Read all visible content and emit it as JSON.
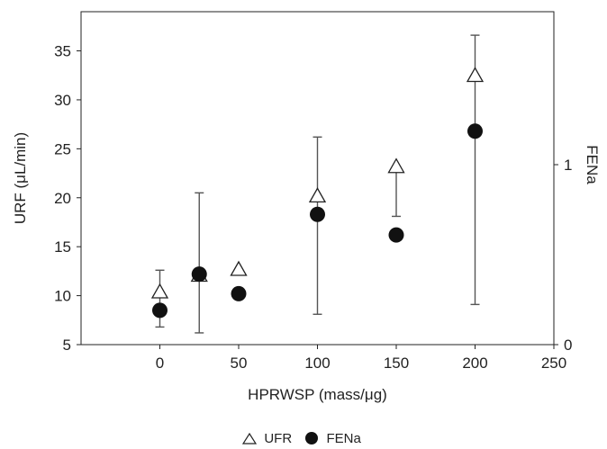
{
  "chart_data": {
    "type": "scatter",
    "title": "",
    "xlabel": "HPRWSP (mass/μg)",
    "ylabel": "URF (μL/min)",
    "y2label": "FENa",
    "xlim": [
      -50,
      250
    ],
    "ylim": [
      5,
      39
    ],
    "y2lim": [
      0,
      1.85
    ],
    "xticks": [
      "0",
      "50",
      "100",
      "150",
      "200",
      "250"
    ],
    "yticks": [
      "5",
      "10",
      "15",
      "20",
      "25",
      "30",
      "35"
    ],
    "y2ticks": [
      "0",
      "1"
    ],
    "grid": false,
    "legend_position": "bottom-center",
    "series": [
      {
        "name": "UFR",
        "marker": "open-triangle",
        "axis": "left",
        "points": [
          {
            "x": 0,
            "y": 10.3,
            "err_low": 6.8,
            "err_high": 12.6
          },
          {
            "x": 25,
            "y": 12.0,
            "err_low": 6.2,
            "err_high": 20.5
          },
          {
            "x": 50,
            "y": 12.6,
            "err_low": null,
            "err_high": null
          },
          {
            "x": 100,
            "y": 20.1,
            "err_low": 8.1,
            "err_high": 26.2
          },
          {
            "x": 150,
            "y": 23.1,
            "err_low": 18.1,
            "err_high": 23.1
          },
          {
            "x": 200,
            "y": 32.4,
            "err_low": 9.1,
            "err_high": 36.6
          }
        ]
      },
      {
        "name": "FENa",
        "marker": "filled-circle",
        "axis": "left",
        "points": [
          {
            "x": 0,
            "y": 8.5
          },
          {
            "x": 25,
            "y": 12.2
          },
          {
            "x": 50,
            "y": 10.2
          },
          {
            "x": 100,
            "y": 18.3
          },
          {
            "x": 150,
            "y": 16.2
          },
          {
            "x": 200,
            "y": 26.8
          }
        ]
      }
    ],
    "colors": {
      "marker": "#111111",
      "axis": "#222222",
      "errorbar": "#555555"
    }
  },
  "legend": {
    "ufr_label": "UFR",
    "fena_label": "FENa"
  }
}
